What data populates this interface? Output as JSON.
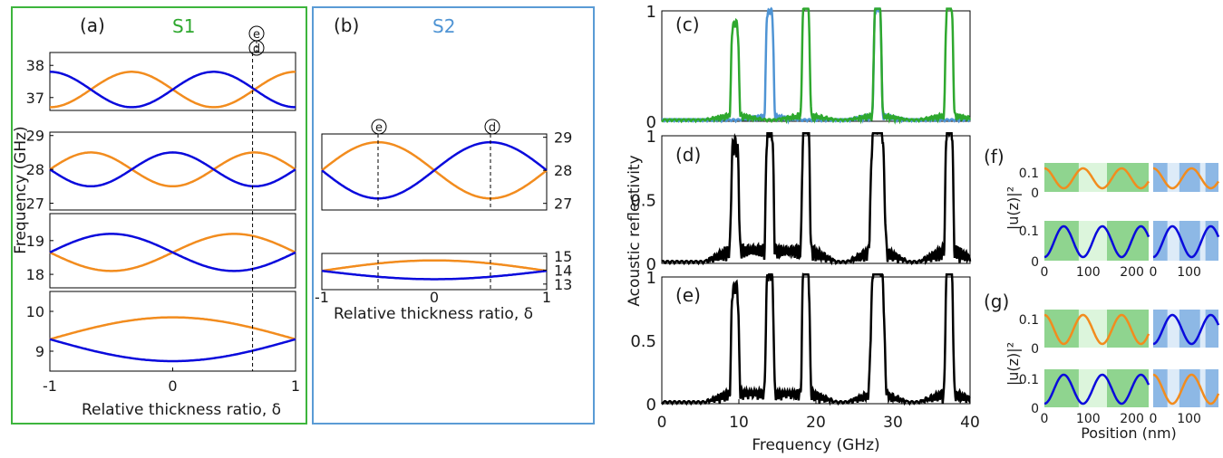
{
  "colors": {
    "orange": "#F28C1E",
    "blue": "#0A0ADC",
    "green": "#2EA82E",
    "lightblue": "#4F94D4",
    "black": "#000000",
    "s1_frame": "#3DB53D",
    "s2_frame": "#5A9BD5",
    "green_fill": "#8FD48F",
    "green_fill_light": "#DCF5DC",
    "blue_fill": "#8DB8E5",
    "blue_fill_light": "#DDEBF8"
  },
  "labels": {
    "a": "(a)",
    "b": "(b)",
    "c": "(c)",
    "d": "(d)",
    "e": "(e)",
    "f": "(f)",
    "g": "(g)",
    "s1": "S1",
    "s2": "S2",
    "marker_e": "e",
    "marker_d": "d",
    "freq_ylabel": "Frequency (GHz)",
    "delta_xlabel": "Relative thickness ratio, δ",
    "refl_ylabel": "Acoustic reflectivity",
    "freq_xlabel": "Frequency (GHz)",
    "u_ylabel": "|u(z)|²",
    "pos_xlabel": "Position (nm)"
  },
  "chart_data": [
    {
      "panel": "a",
      "type": "line",
      "xlim": [
        -1,
        1
      ],
      "xticks": [
        "-1",
        "0",
        "1"
      ],
      "subplots": [
        {
          "ylim": [
            36.6,
            38.4
          ],
          "yticks": [
            "38",
            "37"
          ],
          "series": [
            {
              "color": "orange",
              "formula": "37.25 - 0.55*cos(1.5*pi*(d+1))"
            },
            {
              "color": "blue",
              "formula": "37.25 + 0.55*cos(1.5*pi*(d+1))"
            }
          ]
        },
        {
          "ylim": [
            26.8,
            29.1
          ],
          "yticks": [
            "29",
            "28",
            "27"
          ],
          "series": [
            {
              "color": "orange",
              "formula": "28 + 0.5*sin(1.5*pi*(d+1))"
            },
            {
              "color": "blue",
              "formula": "28 - 0.5*sin(1.5*pi*(d+1))"
            }
          ]
        },
        {
          "ylim": [
            17.6,
            19.8
          ],
          "yticks": [
            "19",
            "18"
          ],
          "series": [
            {
              "color": "orange",
              "formula": "18.65 - 0.55*sin(pi*(d+1))"
            },
            {
              "color": "blue",
              "formula": "18.65 + 0.55*sin(pi*(d+1))"
            }
          ]
        },
        {
          "ylim": [
            8.5,
            10.5
          ],
          "yticks": [
            "10",
            "9"
          ],
          "series": [
            {
              "color": "orange",
              "formula": "9.3 + 0.55*cos(pi*d/2)"
            },
            {
              "color": "blue",
              "formula": "9.3 - 0.55*cos(pi*d/2)"
            }
          ]
        }
      ],
      "dashed_x": 0.65,
      "xlabel": "Relative thickness ratio, δ"
    },
    {
      "panel": "b",
      "type": "line",
      "xlim": [
        -1,
        1
      ],
      "xticks": [
        "-1",
        "0",
        "1"
      ],
      "subplots": [
        {
          "ylim": [
            26.8,
            29.1
          ],
          "yticks": [
            "29",
            "28",
            "27"
          ],
          "series": [
            {
              "color": "orange",
              "formula": "28 - 0.85*sin(pi*d)"
            },
            {
              "color": "blue",
              "formula": "28 + 0.85*sin(pi*d)"
            }
          ]
        },
        {
          "ylim": [
            12.6,
            15.2
          ],
          "yticks": [
            "15",
            "14",
            "13"
          ],
          "series": [
            {
              "color": "orange",
              "formula": "13.95 + 0.75*cos(pi*d/2)"
            },
            {
              "color": "blue",
              "formula": "13.95 - 0.6*cos(pi*d/2)"
            }
          ]
        }
      ],
      "dashed_x": [
        -0.5,
        0.5
      ],
      "xlabel": "Relative thickness ratio, δ"
    },
    {
      "panel": "c",
      "type": "line",
      "xlim": [
        0,
        40
      ],
      "ylim": [
        0,
        1
      ],
      "yticks": [
        "1",
        "0"
      ],
      "series": [
        {
          "name": "S1",
          "color": "green",
          "peaks_ghz": [
            9.5,
            18.7,
            28.0,
            37.3
          ],
          "peak_heights": [
            0.83,
            1.0,
            1.0,
            1.0
          ]
        },
        {
          "name": "S2",
          "color": "lightblue",
          "peaks_ghz": [
            14.0,
            28.0
          ],
          "peak_heights": [
            0.95,
            0.98
          ]
        }
      ]
    },
    {
      "panel": "d",
      "type": "line",
      "xlim": [
        0,
        40
      ],
      "ylim": [
        0,
        1
      ],
      "yticks": [
        "1",
        "0.5",
        "0"
      ],
      "peaks_ghz": [
        9.5,
        14.0,
        18.7,
        28.0,
        37.3
      ],
      "peak_heights": [
        0.82,
        0.95,
        1.0,
        1.0,
        1.0
      ]
    },
    {
      "panel": "e",
      "type": "line",
      "xlim": [
        0,
        40
      ],
      "ylim": [
        0,
        1
      ],
      "yticks": [
        "1",
        "0.5",
        "0"
      ],
      "xticks": [
        "0",
        "10",
        "20",
        "30",
        "40"
      ],
      "xlabel": "Frequency (GHz)",
      "peaks_ghz": [
        9.5,
        14.0,
        18.7,
        28.0,
        37.3
      ],
      "peak_heights": [
        0.83,
        0.95,
        1.0,
        1.0,
        1.0
      ]
    },
    {
      "panel": "f",
      "type": "line",
      "ylim": [
        0,
        0.15
      ],
      "yticks": [
        "0.1",
        "0"
      ],
      "rows": [
        {
          "left": {
            "color": "orange",
            "xlim": [
              0,
              270
            ],
            "layer": "green"
          },
          "right": {
            "color": "orange",
            "xlim": [
              0,
              180
            ],
            "layer": "blue"
          }
        },
        {
          "left": {
            "color": "blue",
            "xlim": [
              0,
              270
            ],
            "layer": "green"
          },
          "right": {
            "color": "blue",
            "xlim": [
              0,
              180
            ],
            "layer": "blue"
          }
        }
      ],
      "xticks_left": [
        "0",
        "100",
        "200"
      ],
      "xticks_right": [
        "0",
        "100"
      ]
    },
    {
      "panel": "g",
      "type": "line",
      "ylim": [
        0,
        0.15
      ],
      "yticks": [
        "0.1",
        "0"
      ],
      "rows": [
        {
          "left": {
            "color": "orange",
            "xlim": [
              0,
              270
            ],
            "layer": "green"
          },
          "right": {
            "color": "blue",
            "xlim": [
              0,
              180
            ],
            "layer": "blue"
          }
        },
        {
          "left": {
            "color": "blue",
            "xlim": [
              0,
              270
            ],
            "layer": "green"
          },
          "right": {
            "color": "orange",
            "xlim": [
              0,
              180
            ],
            "layer": "blue"
          }
        }
      ],
      "xticks_left": [
        "0",
        "100",
        "200"
      ],
      "xticks_right": [
        "0",
        "100"
      ],
      "xlabel": "Position (nm)"
    }
  ]
}
